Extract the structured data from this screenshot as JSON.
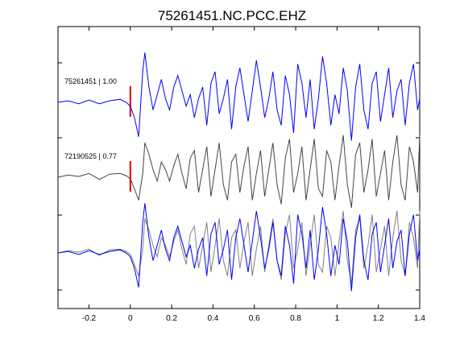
{
  "chart_data": {
    "type": "line",
    "title": "75261451.NC.PCC.EHZ",
    "xlabel": "",
    "ylabel": "",
    "xlim": [
      -0.35,
      1.4
    ],
    "xticks": [
      -0.2,
      0,
      0.2,
      0.4,
      0.6,
      0.8,
      1,
      1.2,
      1.4
    ],
    "xtick_labels": [
      "-0.2",
      "0",
      "0.2",
      "0.4",
      "0.6",
      "0.8",
      "1",
      "1.2",
      "1.4"
    ],
    "grid": false,
    "legend": "none",
    "pick_time": 0,
    "panels": [
      {
        "label": "75261451 | 1.00",
        "color": "#0000ff",
        "pick_marker": true
      },
      {
        "label": "72190525 | 0.77",
        "color": "#444444",
        "pick_marker": true
      },
      {
        "label": "",
        "overlay": true,
        "pick_marker": false
      }
    ],
    "series": [
      {
        "panel": 0,
        "color": "#0000ff",
        "x": [
          -0.35,
          -0.3,
          -0.25,
          -0.2,
          -0.15,
          -0.1,
          -0.05,
          -0.02,
          0,
          0.02,
          0.04,
          0.06,
          0.07,
          0.09,
          0.11,
          0.13,
          0.15,
          0.17,
          0.19,
          0.21,
          0.23,
          0.25,
          0.27,
          0.29,
          0.31,
          0.33,
          0.35,
          0.37,
          0.39,
          0.41,
          0.43,
          0.45,
          0.47,
          0.49,
          0.51,
          0.53,
          0.55,
          0.57,
          0.59,
          0.61,
          0.63,
          0.65,
          0.67,
          0.69,
          0.71,
          0.73,
          0.75,
          0.77,
          0.79,
          0.81,
          0.83,
          0.85,
          0.87,
          0.89,
          0.91,
          0.93,
          0.95,
          0.97,
          0.99,
          1.01,
          1.03,
          1.05,
          1.07,
          1.09,
          1.11,
          1.13,
          1.15,
          1.17,
          1.19,
          1.21,
          1.23,
          1.25,
          1.27,
          1.29,
          1.31,
          1.33,
          1.35,
          1.37,
          1.39,
          1.4
        ],
        "y": [
          0,
          0.02,
          -0.02,
          0.03,
          -0.02,
          0.02,
          0.04,
          0,
          -0.05,
          -0.2,
          -0.45,
          0.4,
          0.65,
          0.2,
          -0.1,
          0.1,
          0.3,
          0.05,
          -0.1,
          0.2,
          0.35,
          0.15,
          -0.05,
          0.1,
          -0.2,
          0.05,
          0.2,
          -0.3,
          0.25,
          0.4,
          -0.15,
          0.05,
          0.3,
          -0.35,
          0.2,
          0.45,
          0.1,
          -0.25,
          0.15,
          0.55,
          0.2,
          -0.2,
          0.05,
          0.4,
          -0.1,
          -0.3,
          0.35,
          0.1,
          -0.4,
          0.5,
          0.25,
          -0.2,
          0.3,
          -0.35,
          0.05,
          0.6,
          0.25,
          -0.3,
          0.1,
          -0.15,
          0.45,
          0.15,
          -0.5,
          0.2,
          0.5,
          -0.1,
          -0.35,
          0.25,
          0.4,
          -0.25,
          0.1,
          0.45,
          -0.2,
          0.15,
          0.3,
          -0.3,
          0.25,
          0.5,
          -0.1,
          0.05
        ]
      },
      {
        "panel": 1,
        "color": "#444444",
        "x": [
          -0.35,
          -0.3,
          -0.25,
          -0.2,
          -0.15,
          -0.1,
          -0.05,
          -0.02,
          0,
          0.02,
          0.04,
          0.06,
          0.07,
          0.09,
          0.11,
          0.13,
          0.15,
          0.17,
          0.19,
          0.21,
          0.23,
          0.25,
          0.27,
          0.29,
          0.31,
          0.33,
          0.35,
          0.37,
          0.39,
          0.41,
          0.43,
          0.45,
          0.47,
          0.49,
          0.51,
          0.53,
          0.55,
          0.57,
          0.59,
          0.61,
          0.63,
          0.65,
          0.67,
          0.69,
          0.71,
          0.73,
          0.75,
          0.77,
          0.79,
          0.81,
          0.83,
          0.85,
          0.87,
          0.89,
          0.91,
          0.93,
          0.95,
          0.97,
          0.99,
          1.01,
          1.03,
          1.05,
          1.07,
          1.09,
          1.11,
          1.13,
          1.15,
          1.17,
          1.19,
          1.21,
          1.23,
          1.25,
          1.27,
          1.29,
          1.31,
          1.33,
          1.35,
          1.37,
          1.39,
          1.4
        ],
        "y": [
          0,
          0.03,
          0.01,
          0.05,
          -0.03,
          0.04,
          0.05,
          0.02,
          -0.02,
          -0.15,
          -0.3,
          0.05,
          0.45,
          0.3,
          0.1,
          -0.05,
          0.2,
          0.1,
          -0.05,
          0.15,
          0.3,
          0.05,
          -0.15,
          0.25,
          0.35,
          -0.2,
          0.1,
          0.4,
          -0.25,
          0.1,
          0.45,
          -0.1,
          -0.3,
          0.2,
          0.3,
          -0.2,
          0.15,
          0.4,
          -0.3,
          0.05,
          0.35,
          -0.25,
          0.1,
          0.45,
          -0.1,
          -0.35,
          0.25,
          0.5,
          -0.2,
          0.05,
          0.4,
          -0.3,
          0.1,
          0.5,
          -0.15,
          -0.25,
          0.35,
          0.2,
          -0.3,
          0.15,
          0.55,
          -0.1,
          -0.4,
          0.3,
          0.45,
          -0.2,
          0.1,
          0.5,
          -0.25,
          0.05,
          0.35,
          -0.3,
          0.2,
          0.55,
          -0.1,
          -0.3,
          0.4,
          0.2,
          -0.2,
          0.55
        ]
      }
    ]
  }
}
